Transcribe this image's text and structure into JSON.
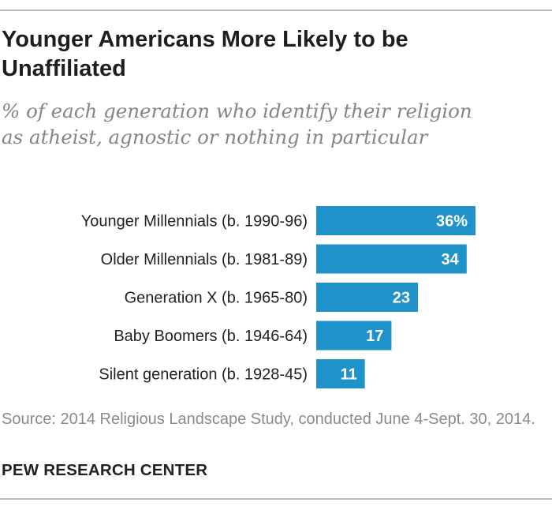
{
  "header": {
    "title": "Younger Americans More Likely to be Unaffiliated",
    "subtitle": "% of each generation who identify their religion as atheist, agnostic or nothing in particular"
  },
  "chart_data": {
    "type": "bar",
    "orientation": "horizontal",
    "title": "Younger Americans More Likely to be Unaffiliated",
    "subtitle": "% of each generation who identify their religion as atheist, agnostic or nothing in particular",
    "categories": [
      "Younger Millennials (b. 1990-96)",
      "Older Millennials (b. 1981-89)",
      "Generation X (b. 1965-80)",
      "Baby Boomers (b. 1946-64)",
      "Silent generation (b. 1928-45)"
    ],
    "values": [
      36,
      34,
      23,
      17,
      11
    ],
    "value_labels": [
      "36%",
      "34",
      "23",
      "17",
      "11"
    ],
    "units": "%",
    "xlim": [
      0,
      36
    ],
    "xlabel": "",
    "ylabel": "",
    "grid": false,
    "legend": "none",
    "bar_color": "#1f93c9",
    "label_color": "#ffffff"
  },
  "footer": {
    "source": "Source: 2014 Religious Landscape Study, conducted June 4-Sept. 30, 2014.",
    "brand": "PEW RESEARCH CENTER"
  }
}
